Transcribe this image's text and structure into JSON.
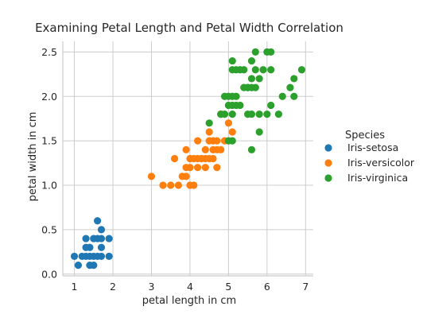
{
  "chart_data": {
    "type": "scatter",
    "title": "Examining Petal Length and Petal Width Correlation",
    "xlabel": "petal length in cm",
    "ylabel": "petal width in cm",
    "xlim": [
      0.7,
      7.2
    ],
    "ylim": [
      -0.02,
      2.62
    ],
    "xticks": [
      1,
      2,
      3,
      4,
      5,
      6,
      7
    ],
    "yticks": [
      0.0,
      0.5,
      1.0,
      1.5,
      2.0,
      2.5
    ],
    "yticklabels": [
      "0.0",
      "0.5",
      "1.0",
      "1.5",
      "2.0",
      "2.5"
    ],
    "grid": true,
    "legend": {
      "title": "Species",
      "placement": "right"
    },
    "series": [
      {
        "name": "Iris-setosa",
        "color": "#1f77b4",
        "points": [
          [
            1.0,
            0.2
          ],
          [
            1.1,
            0.1
          ],
          [
            1.2,
            0.2
          ],
          [
            1.3,
            0.2
          ],
          [
            1.3,
            0.3
          ],
          [
            1.3,
            0.4
          ],
          [
            1.4,
            0.2
          ],
          [
            1.4,
            0.1
          ],
          [
            1.4,
            0.3
          ],
          [
            1.5,
            0.2
          ],
          [
            1.5,
            0.1
          ],
          [
            1.5,
            0.4
          ],
          [
            1.6,
            0.2
          ],
          [
            1.6,
            0.6
          ],
          [
            1.6,
            0.4
          ],
          [
            1.7,
            0.2
          ],
          [
            1.7,
            0.5
          ],
          [
            1.7,
            0.3
          ],
          [
            1.7,
            0.4
          ],
          [
            1.9,
            0.2
          ],
          [
            1.9,
            0.4
          ]
        ]
      },
      {
        "name": "Iris-versicolor",
        "color": "#ff7f0e",
        "points": [
          [
            3.0,
            1.1
          ],
          [
            3.3,
            1.0
          ],
          [
            3.5,
            1.0
          ],
          [
            3.6,
            1.3
          ],
          [
            3.7,
            1.0
          ],
          [
            3.8,
            1.1
          ],
          [
            3.9,
            1.1
          ],
          [
            3.9,
            1.2
          ],
          [
            3.9,
            1.4
          ],
          [
            4.0,
            1.0
          ],
          [
            4.0,
            1.2
          ],
          [
            4.0,
            1.3
          ],
          [
            4.1,
            1.0
          ],
          [
            4.1,
            1.3
          ],
          [
            4.2,
            1.2
          ],
          [
            4.2,
            1.3
          ],
          [
            4.2,
            1.5
          ],
          [
            4.3,
            1.3
          ],
          [
            4.4,
            1.2
          ],
          [
            4.4,
            1.3
          ],
          [
            4.4,
            1.4
          ],
          [
            4.5,
            1.3
          ],
          [
            4.5,
            1.5
          ],
          [
            4.5,
            1.6
          ],
          [
            4.6,
            1.3
          ],
          [
            4.6,
            1.4
          ],
          [
            4.6,
            1.5
          ],
          [
            4.7,
            1.2
          ],
          [
            4.7,
            1.4
          ],
          [
            4.7,
            1.5
          ],
          [
            4.8,
            1.4
          ],
          [
            4.8,
            1.8
          ],
          [
            4.9,
            1.5
          ],
          [
            5.0,
            1.7
          ],
          [
            5.1,
            1.6
          ]
        ]
      },
      {
        "name": "Iris-virginica",
        "color": "#2ca02c",
        "points": [
          [
            4.5,
            1.7
          ],
          [
            4.8,
            1.8
          ],
          [
            4.9,
            1.8
          ],
          [
            5.0,
            2.0
          ],
          [
            4.9,
            2.0
          ],
          [
            5.0,
            1.5
          ],
          [
            5.1,
            1.5
          ],
          [
            5.0,
            1.9
          ],
          [
            5.1,
            1.9
          ],
          [
            5.1,
            2.0
          ],
          [
            5.2,
            2.0
          ],
          [
            5.1,
            1.8
          ],
          [
            5.2,
            1.9
          ],
          [
            5.1,
            2.3
          ],
          [
            5.1,
            2.4
          ],
          [
            5.2,
            2.3
          ],
          [
            5.3,
            2.3
          ],
          [
            5.4,
            2.3
          ],
          [
            5.3,
            1.9
          ],
          [
            5.4,
            2.1
          ],
          [
            5.5,
            2.1
          ],
          [
            5.5,
            1.8
          ],
          [
            5.5,
            2.1
          ],
          [
            5.6,
            2.1
          ],
          [
            5.6,
            2.2
          ],
          [
            5.6,
            1.8
          ],
          [
            5.6,
            2.4
          ],
          [
            5.6,
            1.4
          ],
          [
            5.7,
            2.1
          ],
          [
            5.7,
            2.3
          ],
          [
            5.7,
            2.5
          ],
          [
            5.8,
            1.8
          ],
          [
            5.8,
            2.2
          ],
          [
            5.8,
            1.6
          ],
          [
            5.9,
            2.3
          ],
          [
            6.0,
            2.5
          ],
          [
            6.0,
            1.8
          ],
          [
            6.1,
            2.3
          ],
          [
            6.1,
            2.5
          ],
          [
            6.1,
            1.9
          ],
          [
            6.3,
            1.8
          ],
          [
            6.4,
            2.0
          ],
          [
            6.6,
            2.1
          ],
          [
            6.7,
            2.2
          ],
          [
            6.7,
            2.0
          ],
          [
            6.9,
            2.3
          ]
        ]
      }
    ]
  }
}
